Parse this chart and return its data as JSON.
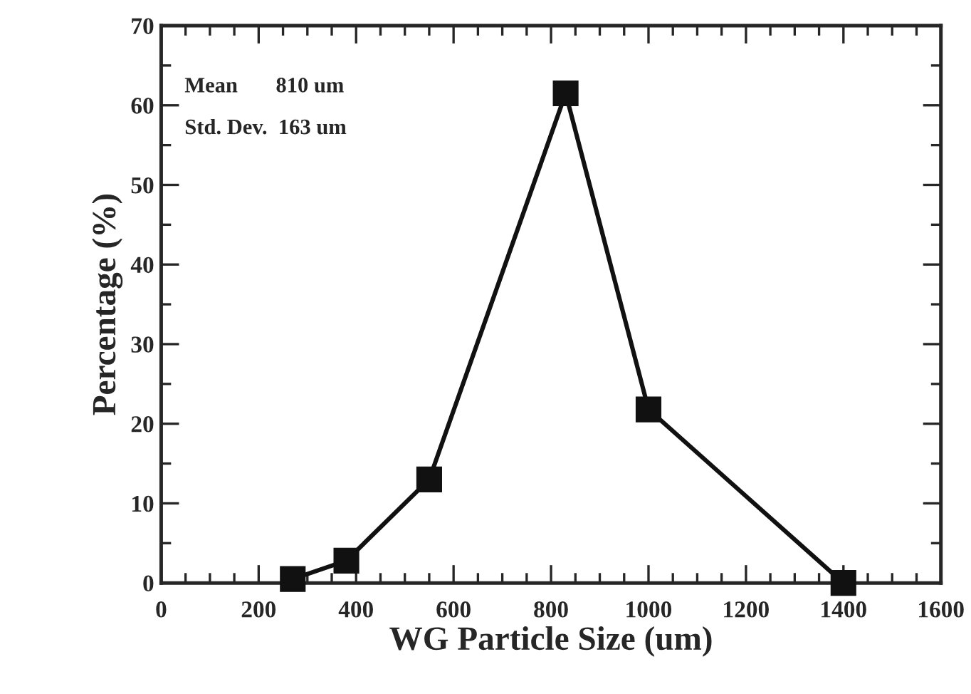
{
  "chart_data": {
    "type": "line",
    "xlabel": "WG Particle Size (um)",
    "ylabel": "Percentage (%)",
    "x": [
      270,
      380,
      550,
      830,
      1000,
      1400
    ],
    "series": [
      {
        "color": "#111111",
        "values": [
          0.5,
          2.8,
          13,
          61.5,
          21.8,
          0
        ]
      }
    ],
    "xlim": [
      0,
      1600
    ],
    "xticks": [
      0,
      200,
      400,
      600,
      800,
      1000,
      1200,
      1400,
      1600
    ],
    "ylim": [
      0,
      70
    ],
    "yticks": [
      0,
      10,
      20,
      30,
      40,
      50,
      60,
      70
    ],
    "marker": "square",
    "line_style": "solid",
    "grid": false,
    "legend": false,
    "annotations": [
      {
        "text": "Mean       810 um"
      },
      {
        "text": "Std. Dev.  163 um"
      }
    ]
  }
}
